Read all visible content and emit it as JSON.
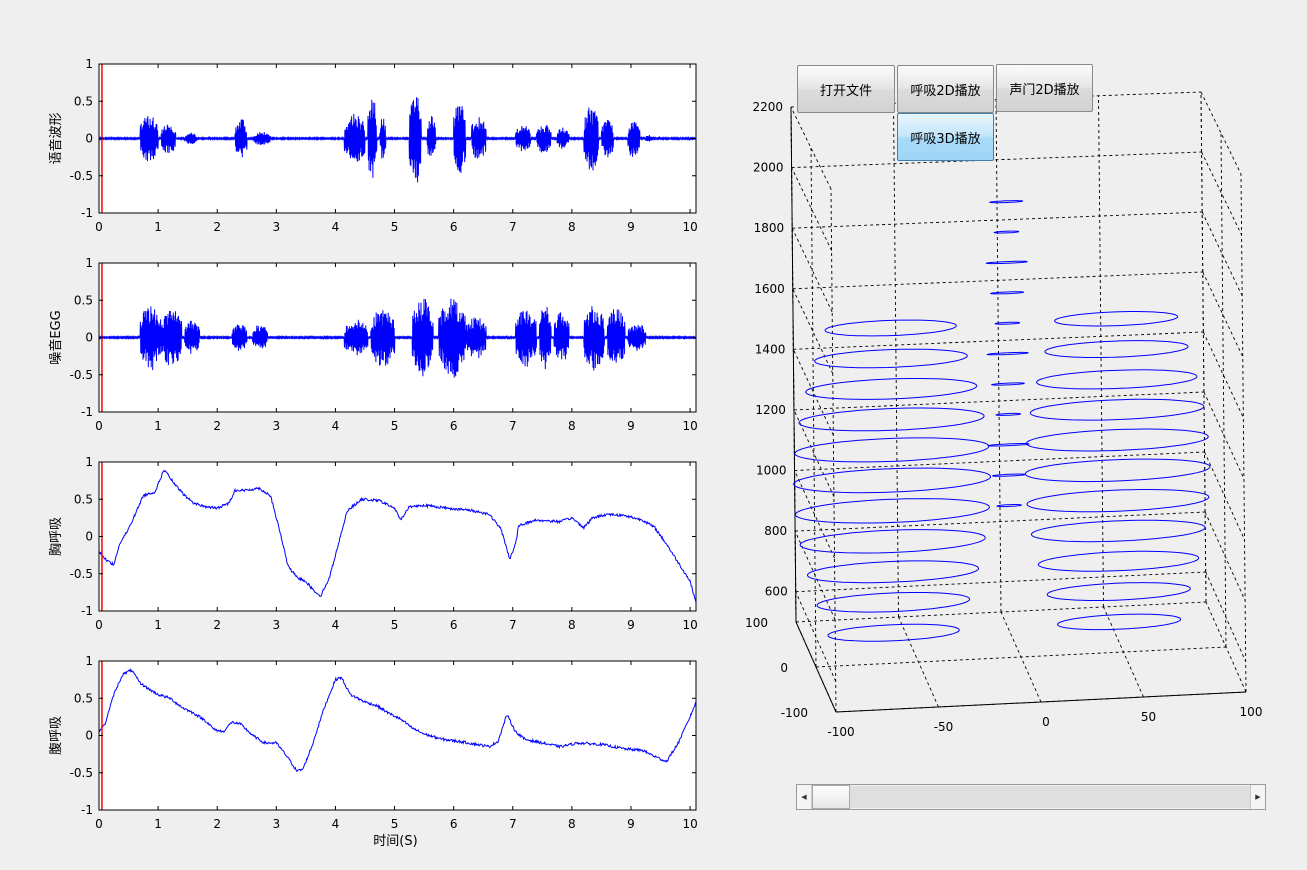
{
  "buttons": {
    "open_file": "打开文件",
    "breath_2d": "呼吸2D播放",
    "glottis_2d": "声门2D播放",
    "breath_3d": "呼吸3D播放"
  },
  "scrollbar": {
    "left_arrow": "◀",
    "right_arrow": "▶",
    "position": 0.0
  },
  "time_axis_label": "时间(S)",
  "colors": {
    "trace": "#0000ff",
    "cursor": "#ff0000",
    "axes": "#000000"
  },
  "chart_data": [
    {
      "type": "line",
      "ylabel": "语音波形",
      "xlim": [
        0,
        10.1
      ],
      "ylim": [
        -1,
        1
      ],
      "xticks": [
        0,
        1,
        2,
        3,
        4,
        5,
        6,
        7,
        8,
        9,
        10
      ],
      "yticks": [
        1,
        0.5,
        0,
        -0.5,
        -1
      ],
      "ytick_labels": [
        "1",
        "0.5",
        "0",
        "-0.5",
        "-1"
      ],
      "cursor_x": 0.05,
      "signal": "audio",
      "bursts": [
        [
          0.7,
          1.0,
          0.33
        ],
        [
          1.05,
          1.3,
          0.22
        ],
        [
          1.45,
          1.65,
          0.08
        ],
        [
          2.3,
          2.5,
          0.28
        ],
        [
          2.6,
          2.9,
          0.09
        ],
        [
          4.15,
          4.5,
          0.35
        ],
        [
          4.55,
          4.7,
          0.6
        ],
        [
          4.75,
          4.85,
          0.3
        ],
        [
          5.25,
          5.45,
          0.65
        ],
        [
          5.55,
          5.7,
          0.3
        ],
        [
          6.0,
          6.2,
          0.5
        ],
        [
          6.3,
          6.55,
          0.3
        ],
        [
          7.05,
          7.3,
          0.2
        ],
        [
          7.4,
          7.65,
          0.2
        ],
        [
          7.75,
          7.95,
          0.15
        ],
        [
          8.2,
          8.45,
          0.45
        ],
        [
          8.5,
          8.7,
          0.28
        ],
        [
          8.95,
          9.15,
          0.28
        ],
        [
          9.25,
          9.35,
          0.05
        ]
      ]
    },
    {
      "type": "line",
      "ylabel": "噪音EGG",
      "xlim": [
        0,
        10.1
      ],
      "ylim": [
        -1,
        1
      ],
      "xticks": [
        0,
        1,
        2,
        3,
        4,
        5,
        6,
        7,
        8,
        9,
        10
      ],
      "yticks": [
        1,
        0.5,
        0,
        -0.5,
        -1
      ],
      "ytick_labels": [
        "1",
        "0.5",
        "0",
        "-0.5",
        "-1"
      ],
      "cursor_x": 0.05,
      "signal": "audio",
      "bursts": [
        [
          0.7,
          1.05,
          0.45
        ],
        [
          1.05,
          1.4,
          0.4
        ],
        [
          1.45,
          1.7,
          0.25
        ],
        [
          2.25,
          2.5,
          0.2
        ],
        [
          2.6,
          2.85,
          0.18
        ],
        [
          4.15,
          4.55,
          0.25
        ],
        [
          4.6,
          5.0,
          0.4
        ],
        [
          5.3,
          5.65,
          0.55
        ],
        [
          5.75,
          6.2,
          0.55
        ],
        [
          6.2,
          6.55,
          0.3
        ],
        [
          7.05,
          7.4,
          0.4
        ],
        [
          7.45,
          7.65,
          0.45
        ],
        [
          7.7,
          7.95,
          0.35
        ],
        [
          8.2,
          8.55,
          0.45
        ],
        [
          8.6,
          8.9,
          0.4
        ],
        [
          8.95,
          9.25,
          0.2
        ]
      ]
    },
    {
      "type": "line",
      "ylabel": "胸呼吸",
      "xlim": [
        0,
        10.1
      ],
      "ylim": [
        -1,
        1
      ],
      "xticks": [
        0,
        1,
        2,
        3,
        4,
        5,
        6,
        7,
        8,
        9,
        10
      ],
      "yticks": [
        1,
        0.5,
        0,
        -0.5,
        -1
      ],
      "ytick_labels": [
        "1",
        "0.5",
        "0",
        "-0.5",
        "-1"
      ],
      "cursor_x": 0.05,
      "signal": "breath",
      "points": [
        [
          0,
          -0.2
        ],
        [
          0.1,
          -0.3
        ],
        [
          0.25,
          -0.38
        ],
        [
          0.35,
          -0.1
        ],
        [
          0.5,
          0.1
        ],
        [
          0.75,
          0.55
        ],
        [
          0.95,
          0.6
        ],
        [
          1.1,
          0.9
        ],
        [
          1.3,
          0.68
        ],
        [
          1.45,
          0.55
        ],
        [
          1.6,
          0.45
        ],
        [
          1.8,
          0.4
        ],
        [
          2.0,
          0.38
        ],
        [
          2.2,
          0.45
        ],
        [
          2.3,
          0.62
        ],
        [
          2.5,
          0.62
        ],
        [
          2.7,
          0.65
        ],
        [
          2.9,
          0.55
        ],
        [
          3.05,
          0.1
        ],
        [
          3.2,
          -0.4
        ],
        [
          3.35,
          -0.55
        ],
        [
          3.5,
          -0.6
        ],
        [
          3.6,
          -0.7
        ],
        [
          3.75,
          -0.8
        ],
        [
          3.9,
          -0.55
        ],
        [
          4.05,
          -0.1
        ],
        [
          4.2,
          0.35
        ],
        [
          4.45,
          0.5
        ],
        [
          4.75,
          0.48
        ],
        [
          5.0,
          0.38
        ],
        [
          5.1,
          0.22
        ],
        [
          5.25,
          0.4
        ],
        [
          5.5,
          0.42
        ],
        [
          5.9,
          0.38
        ],
        [
          6.3,
          0.35
        ],
        [
          6.6,
          0.3
        ],
        [
          6.8,
          0.1
        ],
        [
          6.95,
          -0.3
        ],
        [
          7.05,
          -0.1
        ],
        [
          7.1,
          0.15
        ],
        [
          7.4,
          0.22
        ],
        [
          7.8,
          0.2
        ],
        [
          8.0,
          0.25
        ],
        [
          8.2,
          0.12
        ],
        [
          8.35,
          0.25
        ],
        [
          8.6,
          0.3
        ],
        [
          8.9,
          0.28
        ],
        [
          9.2,
          0.22
        ],
        [
          9.4,
          0.12
        ],
        [
          9.6,
          -0.1
        ],
        [
          9.8,
          -0.35
        ],
        [
          10.0,
          -0.6
        ],
        [
          10.1,
          -0.88
        ]
      ]
    },
    {
      "type": "line",
      "ylabel": "腹呼吸",
      "xlim": [
        0,
        10.1
      ],
      "ylim": [
        -1,
        1
      ],
      "xticks": [
        0,
        1,
        2,
        3,
        4,
        5,
        6,
        7,
        8,
        9,
        10
      ],
      "yticks": [
        1,
        0.5,
        0,
        -0.5,
        -1
      ],
      "ytick_labels": [
        "1",
        "0.5",
        "0",
        "-0.5",
        "-1"
      ],
      "cursor_x": 0.05,
      "xlabel": "时间(S)",
      "signal": "breath",
      "points": [
        [
          0,
          0.05
        ],
        [
          0.1,
          0.15
        ],
        [
          0.25,
          0.55
        ],
        [
          0.4,
          0.82
        ],
        [
          0.55,
          0.88
        ],
        [
          0.7,
          0.7
        ],
        [
          0.85,
          0.62
        ],
        [
          1.0,
          0.55
        ],
        [
          1.2,
          0.5
        ],
        [
          1.4,
          0.38
        ],
        [
          1.6,
          0.3
        ],
        [
          1.8,
          0.2
        ],
        [
          1.95,
          0.08
        ],
        [
          2.1,
          0.05
        ],
        [
          2.25,
          0.18
        ],
        [
          2.4,
          0.15
        ],
        [
          2.6,
          0.0
        ],
        [
          2.8,
          -0.1
        ],
        [
          3.0,
          -0.1
        ],
        [
          3.2,
          -0.3
        ],
        [
          3.35,
          -0.48
        ],
        [
          3.45,
          -0.45
        ],
        [
          3.6,
          -0.15
        ],
        [
          3.8,
          0.35
        ],
        [
          4.0,
          0.75
        ],
        [
          4.1,
          0.78
        ],
        [
          4.25,
          0.55
        ],
        [
          4.5,
          0.45
        ],
        [
          4.7,
          0.4
        ],
        [
          4.9,
          0.3
        ],
        [
          5.1,
          0.22
        ],
        [
          5.3,
          0.1
        ],
        [
          5.5,
          0.02
        ],
        [
          5.8,
          -0.05
        ],
        [
          6.1,
          -0.08
        ],
        [
          6.4,
          -0.12
        ],
        [
          6.6,
          -0.15
        ],
        [
          6.75,
          -0.08
        ],
        [
          6.9,
          0.28
        ],
        [
          7.05,
          0.05
        ],
        [
          7.2,
          -0.05
        ],
        [
          7.5,
          -0.1
        ],
        [
          7.8,
          -0.15
        ],
        [
          8.1,
          -0.1
        ],
        [
          8.5,
          -0.12
        ],
        [
          8.9,
          -0.18
        ],
        [
          9.2,
          -0.2
        ],
        [
          9.4,
          -0.28
        ],
        [
          9.6,
          -0.35
        ],
        [
          9.8,
          -0.1
        ],
        [
          10.0,
          0.25
        ],
        [
          10.1,
          0.45
        ]
      ]
    },
    {
      "type": "line3d",
      "title": "",
      "xlim": [
        -100,
        100
      ],
      "ylim": [
        -100,
        100
      ],
      "zlim": [
        500,
        2200
      ],
      "xticks": [
        -100,
        -50,
        0,
        50,
        100
      ],
      "yticks": [
        -100,
        0,
        100
      ],
      "zticks": [
        600,
        800,
        1000,
        1200,
        1400,
        1600,
        1800,
        2000,
        2200
      ],
      "grid": true,
      "note_series": "stacked ellipse outlines at each height level",
      "ellipse_groups": [
        {
          "name": "",
          "cx": -62,
          "rx": 48,
          "ry": 22,
          "z": [
            600,
            700,
            800,
            900,
            1000,
            1100,
            1200,
            1300,
            1400,
            1500,
            1600
          ]
        },
        {
          "name": "",
          "cx": 48,
          "rx": 45,
          "ry": 20,
          "z": [
            600,
            700,
            800,
            900,
            1000,
            1100,
            1200,
            1300,
            1400,
            1500,
            1600
          ]
        }
      ]
    }
  ]
}
